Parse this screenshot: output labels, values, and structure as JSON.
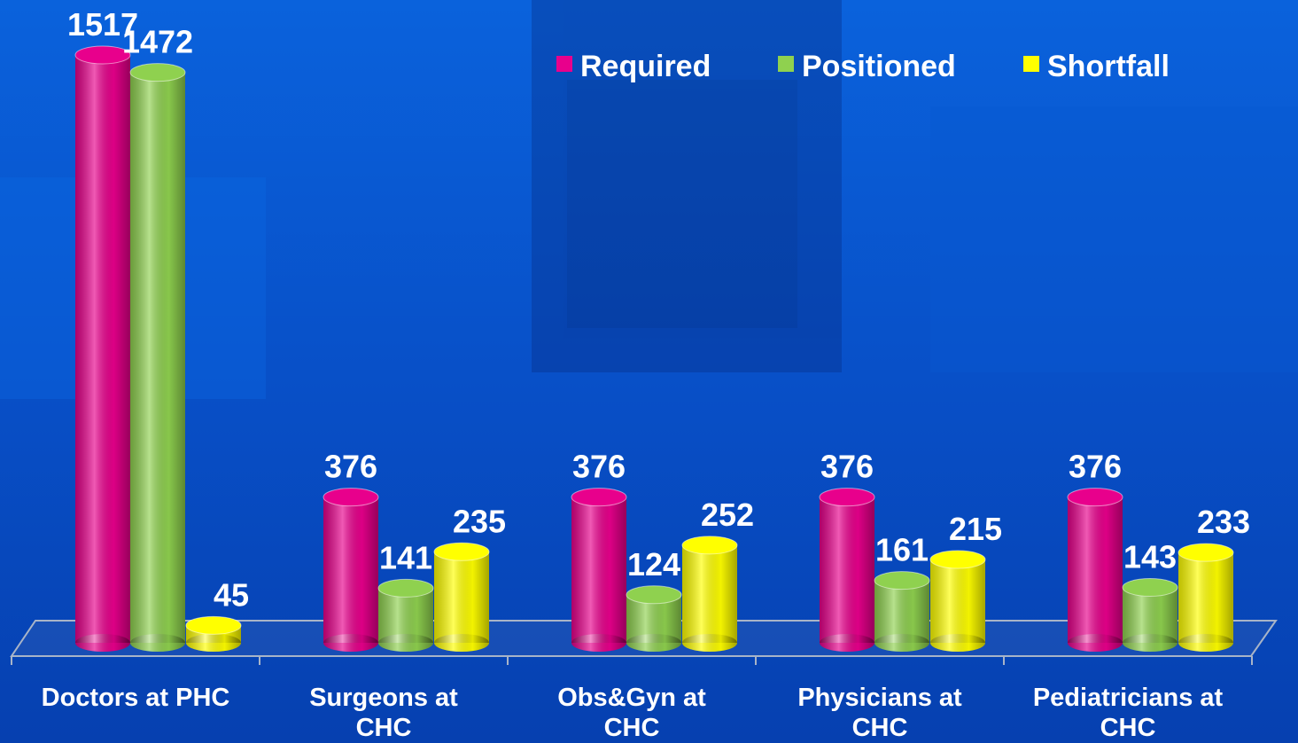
{
  "chart_data": {
    "type": "bar",
    "categories": [
      "Doctors at PHC",
      "Surgeons at\nCHC",
      "Obs&Gyn at\nCHC",
      "Physicians at\nCHC",
      "Pediatricians at\nCHC"
    ],
    "series": [
      {
        "name": "Required",
        "color": "#e8008c",
        "values": [
          1517,
          376,
          376,
          376,
          376
        ]
      },
      {
        "name": "Positioned",
        "color": "#8fd14f",
        "values": [
          1472,
          141,
          124,
          161,
          143
        ]
      },
      {
        "name": "Shortfall",
        "color": "#ffff00",
        "values": [
          45,
          235,
          252,
          215,
          233
        ]
      }
    ]
  }
}
